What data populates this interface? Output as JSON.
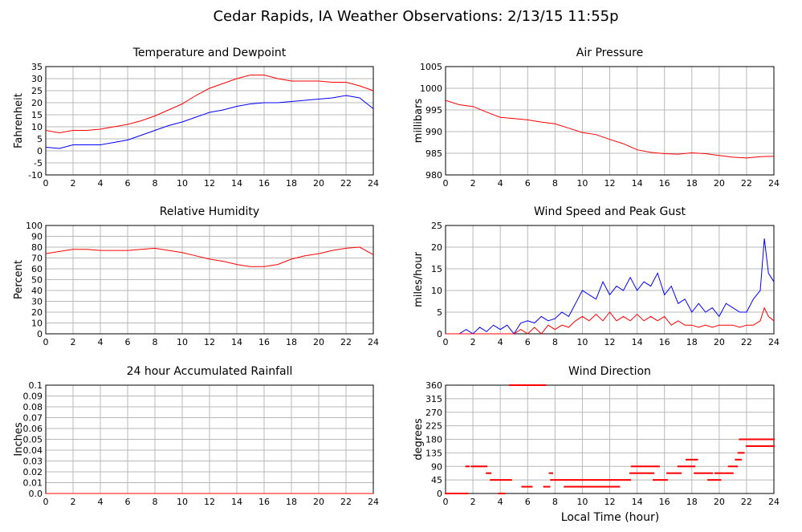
{
  "page_title": "Cedar Rapids, IA Weather Observations: 2/13/15 11:55p",
  "x_axis_label": "Local Time (hour)",
  "colors": {
    "red": "#ff0000",
    "blue": "#0000ff",
    "grid": "#b8b8b8"
  },
  "chart_data": [
    {
      "id": "temp",
      "type": "line",
      "title": "Temperature and Dewpoint",
      "ylabel": "Fahrenheit",
      "xlim": [
        0,
        24
      ],
      "ylim": [
        -10,
        35
      ],
      "x_ticks": [
        0,
        2,
        4,
        6,
        8,
        10,
        12,
        14,
        16,
        18,
        20,
        22,
        24
      ],
      "y_ticks": [
        "-10",
        "-5",
        "0",
        "5",
        "10",
        "15",
        "20",
        "25",
        "30",
        "35"
      ],
      "series": [
        {
          "color": "#ff0000",
          "x": [
            0,
            1,
            2,
            3,
            4,
            5,
            6,
            7,
            8,
            9,
            10,
            11,
            12,
            13,
            14,
            15,
            16,
            17,
            18,
            19,
            20,
            21,
            22,
            23,
            24
          ],
          "y": [
            8.5,
            7.5,
            8.5,
            8.5,
            9,
            10,
            11,
            12.5,
            14.5,
            17,
            19.5,
            23,
            26,
            28,
            30,
            31.5,
            31.5,
            30,
            29,
            29,
            29,
            28.5,
            28.5,
            27,
            25
          ]
        },
        {
          "color": "#0000ff",
          "x": [
            0,
            1,
            2,
            3,
            4,
            5,
            6,
            7,
            8,
            9,
            10,
            11,
            12,
            13,
            14,
            15,
            16,
            17,
            18,
            19,
            20,
            21,
            22,
            23,
            24
          ],
          "y": [
            1.5,
            1,
            2.5,
            2.5,
            2.5,
            3.5,
            4.5,
            6.5,
            8.5,
            10.5,
            12,
            14,
            16,
            17,
            18.5,
            19.5,
            20,
            20,
            20.5,
            21,
            21.5,
            22,
            23,
            22,
            17.5
          ]
        }
      ]
    },
    {
      "id": "pressure",
      "type": "line",
      "title": "Air Pressure",
      "ylabel": "millibars",
      "xlim": [
        0,
        24
      ],
      "ylim": [
        980,
        1005
      ],
      "x_ticks": [
        0,
        2,
        4,
        6,
        8,
        10,
        12,
        14,
        16,
        18,
        20,
        22,
        24
      ],
      "y_ticks": [
        "980",
        "985",
        "990",
        "995",
        "1000",
        "1005"
      ],
      "series": [
        {
          "color": "#ff0000",
          "x": [
            0,
            1,
            2,
            3,
            4,
            5,
            6,
            7,
            8,
            9,
            10,
            11,
            12,
            13,
            14,
            15,
            16,
            17,
            18,
            19,
            20,
            21,
            22,
            23,
            24
          ],
          "y": [
            997.2,
            996.2,
            995.8,
            994.5,
            993.3,
            993,
            992.7,
            992.2,
            991.8,
            990.8,
            989.8,
            989.3,
            988.2,
            987.2,
            985.8,
            985.2,
            984.9,
            984.8,
            985.1,
            984.9,
            984.5,
            984.1,
            983.9,
            984.2,
            984.3
          ]
        }
      ]
    },
    {
      "id": "humidity",
      "type": "line",
      "title": "Relative Humidity",
      "ylabel": "Percent",
      "xlim": [
        0,
        24
      ],
      "ylim": [
        0,
        100
      ],
      "x_ticks": [
        0,
        2,
        4,
        6,
        8,
        10,
        12,
        14,
        16,
        18,
        20,
        22,
        24
      ],
      "y_ticks": [
        "0",
        "10",
        "20",
        "30",
        "40",
        "50",
        "60",
        "70",
        "80",
        "90",
        "100"
      ],
      "series": [
        {
          "color": "#ff0000",
          "x": [
            0,
            1,
            2,
            3,
            4,
            5,
            6,
            7,
            8,
            9,
            10,
            11,
            12,
            13,
            14,
            15,
            16,
            17,
            18,
            19,
            20,
            21,
            22,
            23,
            24
          ],
          "y": [
            74,
            76,
            78,
            78,
            77,
            77,
            77,
            78,
            79,
            77,
            75,
            72,
            69,
            67,
            64,
            62,
            62,
            64,
            69,
            72,
            74,
            77,
            79,
            80,
            73
          ]
        }
      ]
    },
    {
      "id": "wind",
      "type": "line",
      "title": "Wind Speed and Peak Gust",
      "ylabel": "miles/hour",
      "xlim": [
        0,
        24
      ],
      "ylim": [
        0,
        25
      ],
      "x_ticks": [
        0,
        2,
        4,
        6,
        8,
        10,
        12,
        14,
        16,
        18,
        20,
        22,
        24
      ],
      "y_ticks": [
        "0",
        "5",
        "10",
        "15",
        "20",
        "25"
      ],
      "series": [
        {
          "color": "#0000ff",
          "x": [
            0,
            1,
            1.5,
            2,
            2.5,
            3,
            3.5,
            4,
            4.5,
            5,
            5.5,
            6,
            6.5,
            7,
            7.5,
            8,
            8.5,
            9,
            9.5,
            10,
            10.5,
            11,
            11.5,
            12,
            12.5,
            13,
            13.5,
            14,
            14.5,
            15,
            15.5,
            16,
            16.5,
            17,
            17.5,
            18,
            18.5,
            19,
            19.5,
            20,
            20.5,
            21,
            21.5,
            22,
            22.5,
            23,
            23.3,
            23.6,
            24
          ],
          "y": [
            0,
            0,
            1,
            0,
            1.5,
            0.5,
            2,
            1,
            2,
            0,
            2.5,
            3,
            2.5,
            4,
            3,
            3.5,
            5,
            4,
            7,
            10,
            9,
            8,
            12,
            9,
            11,
            10,
            13,
            10,
            12,
            11,
            14,
            9,
            11,
            7,
            8,
            5,
            7,
            5,
            6,
            4,
            7,
            6,
            5,
            5,
            8,
            10,
            22,
            14,
            12
          ]
        },
        {
          "color": "#ff0000",
          "x": [
            0,
            1,
            2,
            3,
            4,
            5,
            5.5,
            6,
            6.5,
            7,
            7.5,
            8,
            8.5,
            9,
            9.5,
            10,
            10.5,
            11,
            11.5,
            12,
            12.5,
            13,
            13.5,
            14,
            14.5,
            15,
            15.5,
            16,
            16.5,
            17,
            17.5,
            18,
            18.5,
            19,
            19.5,
            20,
            20.5,
            21,
            21.5,
            22,
            22.5,
            23,
            23.3,
            23.6,
            24
          ],
          "y": [
            0,
            0,
            0,
            0,
            0,
            0,
            1,
            0,
            1.5,
            0,
            2,
            1,
            2,
            1.5,
            3,
            4,
            3,
            4.5,
            3,
            5,
            3,
            4,
            3,
            4.5,
            3,
            4,
            3,
            4,
            2,
            3,
            2,
            2,
            1.5,
            2,
            1.5,
            2,
            2,
            2,
            1.5,
            2,
            2,
            3,
            6,
            4,
            3
          ]
        }
      ]
    },
    {
      "id": "rain",
      "type": "line",
      "title": "24 hour Accumulated Rainfall",
      "ylabel": "Inches",
      "xlim": [
        0,
        24
      ],
      "ylim": [
        0,
        0.1
      ],
      "x_ticks": [
        0,
        2,
        4,
        6,
        8,
        10,
        12,
        14,
        16,
        18,
        20,
        22,
        24
      ],
      "y_ticks": [
        "0.0",
        "0.01",
        "0.02",
        "0.03",
        "0.04",
        "0.05",
        "0.06",
        "0.07",
        "0.08",
        "0.09",
        "0.1"
      ],
      "series": [
        {
          "color": "#ff0000",
          "x": [
            0,
            24
          ],
          "y": [
            0,
            0
          ]
        }
      ]
    },
    {
      "id": "direction",
      "type": "scatter",
      "title": "Wind Direction",
      "ylabel": "degrees",
      "xlabel": "Local Time (hour)",
      "xlim": [
        0,
        24
      ],
      "ylim": [
        0,
        360
      ],
      "x_ticks": [
        0,
        2,
        4,
        6,
        8,
        10,
        12,
        14,
        16,
        18,
        20,
        22,
        24
      ],
      "y_ticks": [
        "0",
        "45",
        "90",
        "135",
        "180",
        "225",
        "270",
        "315",
        "360"
      ],
      "series": [
        {
          "color": "#ff0000",
          "segments": [
            {
              "x": [
                0,
                1.6
              ],
              "y": 0
            },
            {
              "x": [
                1.5,
                1.7
              ],
              "y": 90
            },
            {
              "x": [
                1.9,
                3
              ],
              "y": 90
            },
            {
              "x": [
                3,
                3.3
              ],
              "y": 67.5
            },
            {
              "x": [
                3.3,
                4.8
              ],
              "y": 45
            },
            {
              "x": [
                3.9,
                4.3
              ],
              "y": 0
            },
            {
              "x": [
                4.7,
                6.2
              ],
              "y": 360
            },
            {
              "x": [
                5.6,
                6.3
              ],
              "y": 22.5
            },
            {
              "x": [
                6.3,
                6.8
              ],
              "y": 360
            },
            {
              "x": [
                6.7,
                7.3
              ],
              "y": 360
            },
            {
              "x": [
                7.2,
                7.6
              ],
              "y": 22.5
            },
            {
              "x": [
                7.6,
                7.8
              ],
              "y": 67.5
            },
            {
              "x": [
                7.7,
                13.5
              ],
              "y": 45
            },
            {
              "x": [
                8.7,
                12.7
              ],
              "y": 22.5
            },
            {
              "x": [
                13.5,
                15.2
              ],
              "y": 67.5
            },
            {
              "x": [
                13.6,
                15.6
              ],
              "y": 90
            },
            {
              "x": [
                15.2,
                16.2
              ],
              "y": 45
            },
            {
              "x": [
                16.2,
                17.2
              ],
              "y": 67.5
            },
            {
              "x": [
                17.0,
                18.2
              ],
              "y": 90
            },
            {
              "x": [
                17.6,
                18.4
              ],
              "y": 112.5
            },
            {
              "x": [
                18.2,
                19.5
              ],
              "y": 67.5
            },
            {
              "x": [
                19.2,
                20.1
              ],
              "y": 45
            },
            {
              "x": [
                19.7,
                21.0
              ],
              "y": 67.5
            },
            {
              "x": [
                20.7,
                21.3
              ],
              "y": 90
            },
            {
              "x": [
                21.2,
                21.6
              ],
              "y": 112.5
            },
            {
              "x": [
                21.4,
                21.8
              ],
              "y": 135
            },
            {
              "x": [
                21.5,
                24
              ],
              "y": 180
            },
            {
              "x": [
                22.0,
                24
              ],
              "y": 157.5
            }
          ]
        }
      ]
    }
  ]
}
